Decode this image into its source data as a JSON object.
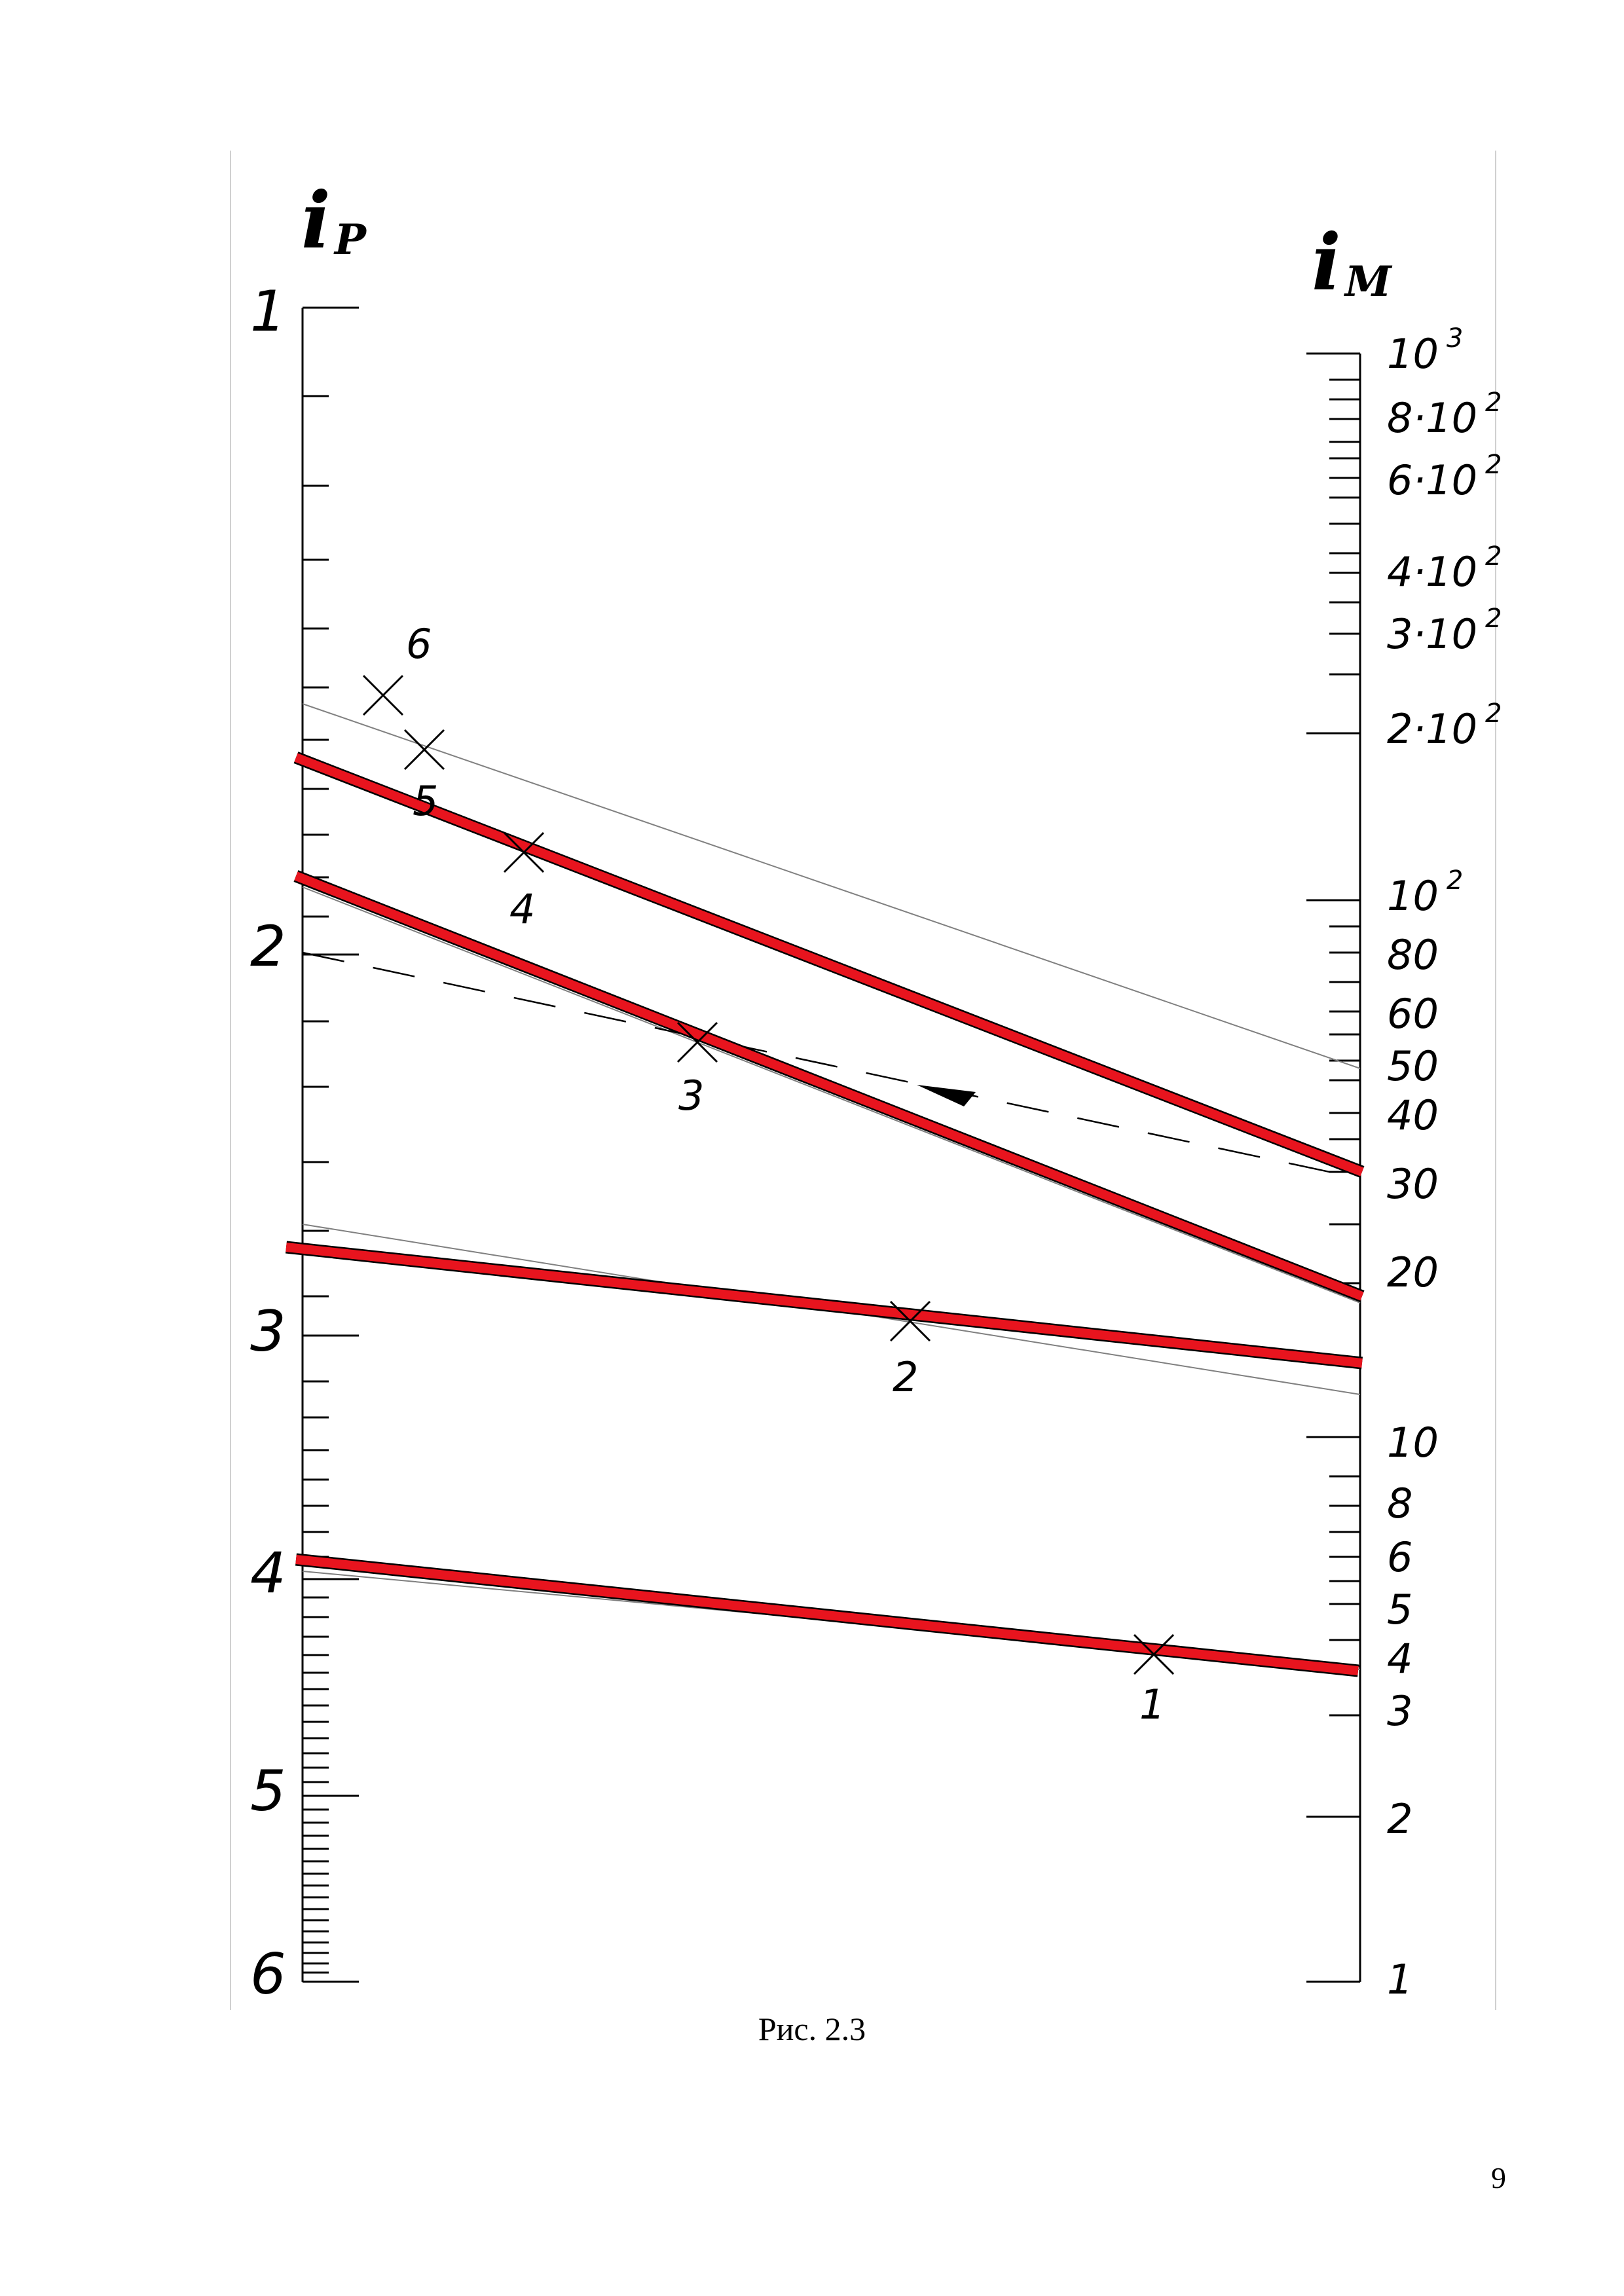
{
  "left_axis": {
    "symbol": "i",
    "subscript": "P",
    "labels": [
      "1",
      "2",
      "3",
      "4",
      "5",
      "6"
    ]
  },
  "right_axis": {
    "symbol": "i",
    "subscript": "M",
    "labels": [
      {
        "base": "10",
        "exp": "3"
      },
      {
        "base": "8·10",
        "exp": "2"
      },
      {
        "base": "6·10",
        "exp": "2"
      },
      {
        "base": "4·10",
        "exp": "2"
      },
      {
        "base": "3·10",
        "exp": "2"
      },
      {
        "base": "2·10",
        "exp": "2"
      },
      {
        "base": "10",
        "exp": "2"
      },
      {
        "base": "80",
        "exp": ""
      },
      {
        "base": "60",
        "exp": ""
      },
      {
        "base": "50",
        "exp": ""
      },
      {
        "base": "40",
        "exp": ""
      },
      {
        "base": "30",
        "exp": ""
      },
      {
        "base": "20",
        "exp": ""
      },
      {
        "base": "10",
        "exp": ""
      },
      {
        "base": "8",
        "exp": ""
      },
      {
        "base": "6",
        "exp": ""
      },
      {
        "base": "5",
        "exp": ""
      },
      {
        "base": "4",
        "exp": ""
      },
      {
        "base": "3",
        "exp": ""
      },
      {
        "base": "2",
        "exp": ""
      },
      {
        "base": "1",
        "exp": ""
      }
    ]
  },
  "points": [
    {
      "label": "1"
    },
    {
      "label": "2"
    },
    {
      "label": "3"
    },
    {
      "label": "4"
    },
    {
      "label": "5"
    },
    {
      "label": "6"
    }
  ],
  "colors": {
    "thick_line": "#e8141e",
    "thick_line_edge": "#000000",
    "thin_line": "#808080",
    "axis": "#000000"
  },
  "caption": "Рис. 2.3",
  "page_number": "9"
}
